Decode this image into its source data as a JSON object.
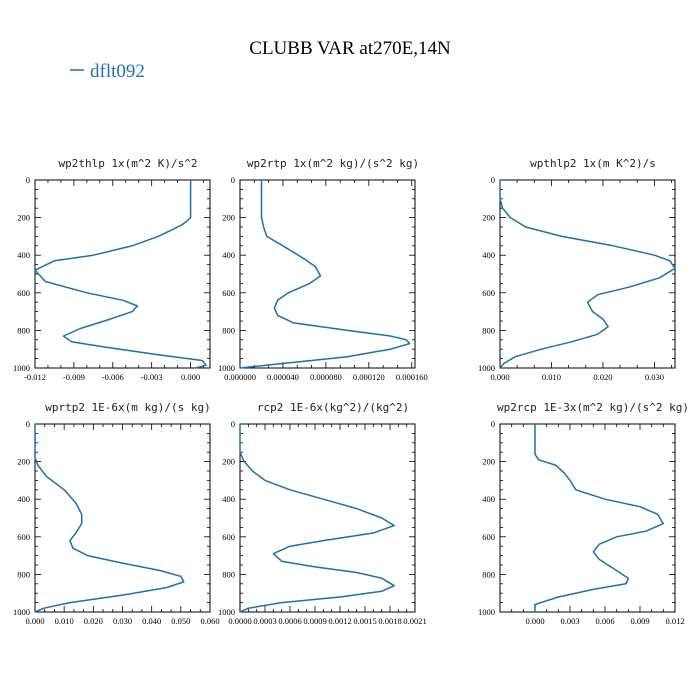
{
  "figure": {
    "title": "CLUBB VAR at270E,14N",
    "legend": [
      {
        "label": "dflt092",
        "color": "#1f6fae"
      }
    ]
  },
  "chart_data": [
    {
      "type": "line",
      "title": "wp2thlp  1x(m^2 K)/s^2",
      "x_range": [
        -0.012,
        0.0015
      ],
      "x_ticks": [
        -0.012,
        -0.009,
        -0.006,
        -0.003,
        0.0
      ],
      "x_tick_labels": [
        "-0.012",
        "-0.009",
        "-0.006",
        "-0.003",
        "0.000"
      ],
      "y_range": [
        0,
        1000
      ],
      "y_inverted": true,
      "y_ticks": [
        0,
        200,
        400,
        600,
        800,
        1000
      ],
      "y_tick_labels": [
        "0",
        "200",
        "400",
        "600",
        "800",
        "1000"
      ],
      "series": [
        {
          "color": "#1f6fae",
          "x": [
            0.0,
            0.0,
            -0.0003,
            -0.0007,
            -0.0013,
            -0.0025,
            -0.0045,
            -0.0075,
            -0.0105,
            -0.012,
            -0.0112,
            -0.008,
            -0.0052,
            -0.0041,
            -0.0045,
            -0.0062,
            -0.0085,
            -0.0098,
            -0.0092,
            -0.0065,
            -0.0025,
            0.0009,
            0.0012,
            0.0004
          ],
          "y": [
            0,
            200,
            220,
            240,
            260,
            300,
            350,
            400,
            430,
            480,
            540,
            600,
            640,
            670,
            700,
            740,
            790,
            830,
            860,
            890,
            930,
            960,
            985,
            1000
          ]
        }
      ]
    },
    {
      "type": "line",
      "title": "wp2rtp  1x(m^2 kg)/(s^2 kg)",
      "x_range": [
        0,
        0.000163
      ],
      "x_ticks": [
        0,
        4e-05,
        8e-05,
        0.00012,
        0.00016
      ],
      "x_tick_labels": [
        "0.000000",
        "0.000040",
        "0.000080",
        "0.000120",
        "0.000160"
      ],
      "y_range": [
        0,
        1000
      ],
      "y_inverted": true,
      "y_ticks": [
        0,
        200,
        400,
        600,
        800,
        1000
      ],
      "y_tick_labels": [
        "0",
        "200",
        "400",
        "600",
        "800",
        "1000"
      ],
      "series": [
        {
          "color": "#1f6fae",
          "x": [
            2e-05,
            2e-05,
            2.2e-05,
            2.5e-05,
            4e-05,
            6e-05,
            7e-05,
            7.5e-05,
            6.5e-05,
            4.5e-05,
            3.5e-05,
            3.2e-05,
            3.5e-05,
            5e-05,
            0.0001,
            0.00014,
            0.000155,
            0.000158,
            0.00014,
            0.0001,
            5e-05,
            0.0
          ],
          "y": [
            0,
            200,
            250,
            300,
            350,
            420,
            460,
            510,
            550,
            600,
            640,
            680,
            720,
            760,
            800,
            830,
            850,
            870,
            900,
            940,
            970,
            1000
          ]
        }
      ]
    },
    {
      "type": "line",
      "title": "wpthlp2  1x(m K^2)/s",
      "x_range": [
        0,
        0.034
      ],
      "x_ticks": [
        0.0,
        0.01,
        0.02,
        0.03
      ],
      "x_tick_labels": [
        "0.000",
        "0.010",
        "0.020",
        "0.030"
      ],
      "y_range": [
        0,
        1000
      ],
      "y_inverted": true,
      "y_ticks": [
        0,
        200,
        400,
        600,
        800,
        1000
      ],
      "y_tick_labels": [
        "0",
        "200",
        "400",
        "600",
        "800",
        "1000"
      ],
      "series": [
        {
          "color": "#1f6fae",
          "x": [
            0.0,
            0.0,
            0.0005,
            0.002,
            0.005,
            0.012,
            0.022,
            0.03,
            0.033,
            0.034,
            0.031,
            0.025,
            0.019,
            0.017,
            0.018,
            0.02,
            0.021,
            0.019,
            0.014,
            0.008,
            0.003,
            0.0008,
            0.0
          ],
          "y": [
            0,
            100,
            150,
            200,
            250,
            300,
            350,
            400,
            430,
            470,
            520,
            570,
            610,
            650,
            700,
            740,
            780,
            820,
            860,
            900,
            940,
            975,
            1000
          ]
        }
      ]
    },
    {
      "type": "line",
      "title": "wprtp2  1E-6x(m kg)/(s kg)",
      "x_range": [
        0,
        0.06
      ],
      "x_ticks": [
        0.0,
        0.01,
        0.02,
        0.03,
        0.04,
        0.05,
        0.06
      ],
      "x_tick_labels": [
        "0.000",
        "0.010",
        "0.020",
        "0.030",
        "0.040",
        "0.050",
        "0.060"
      ],
      "y_range": [
        0,
        1000
      ],
      "y_inverted": true,
      "y_ticks": [
        0,
        200,
        400,
        600,
        800,
        1000
      ],
      "y_tick_labels": [
        "0",
        "200",
        "400",
        "600",
        "800",
        "1000"
      ],
      "series": [
        {
          "color": "#1f6fae",
          "x": [
            0.0,
            0.0,
            0.001,
            0.004,
            0.01,
            0.014,
            0.016,
            0.016,
            0.014,
            0.012,
            0.013,
            0.018,
            0.03,
            0.043,
            0.05,
            0.051,
            0.045,
            0.03,
            0.012,
            0.003,
            0.0
          ],
          "y": [
            0,
            180,
            220,
            280,
            350,
            420,
            480,
            530,
            580,
            620,
            660,
            700,
            740,
            780,
            810,
            840,
            870,
            910,
            950,
            980,
            1000
          ]
        }
      ]
    },
    {
      "type": "line",
      "title": "rcp2  1E-6x(kg^2)/(kg^2)",
      "x_range": [
        0,
        0.0021
      ],
      "x_ticks": [
        0,
        0.0003,
        0.0006,
        0.0009,
        0.0012,
        0.0015,
        0.0018,
        0.0021
      ],
      "x_tick_labels": [
        "0.0000",
        "0.0003",
        "0.0006",
        "0.0009",
        "0.0012",
        "0.0015",
        "0.0018",
        "0.0021"
      ],
      "y_range": [
        0,
        1000
      ],
      "y_inverted": true,
      "y_ticks": [
        0,
        200,
        400,
        600,
        800,
        1000
      ],
      "y_tick_labels": [
        "0",
        "200",
        "400",
        "600",
        "800",
        "1000"
      ],
      "series": [
        {
          "color": "#1f6fae",
          "x": [
            0.0,
            0.0,
            5e-05,
            0.00015,
            0.0003,
            0.0006,
            0.001,
            0.0014,
            0.0017,
            0.00185,
            0.0016,
            0.001,
            0.0006,
            0.0004,
            0.0005,
            0.0009,
            0.0014,
            0.0017,
            0.00185,
            0.0017,
            0.0012,
            0.0005,
            0.0001,
            0.0
          ],
          "y": [
            0,
            150,
            200,
            250,
            300,
            350,
            400,
            450,
            500,
            540,
            580,
            620,
            650,
            690,
            730,
            760,
            790,
            820,
            860,
            890,
            920,
            950,
            980,
            1000
          ]
        }
      ]
    },
    {
      "type": "line",
      "title": "wp2rcp  1E-3x(m^2 kg)/(s^2 kg)",
      "x_range": [
        -0.003,
        0.012
      ],
      "x_ticks": [
        0.0,
        0.003,
        0.006,
        0.009,
        0.012
      ],
      "x_tick_labels": [
        "0.000",
        "0.003",
        "0.006",
        "0.009",
        "0.012"
      ],
      "y_range": [
        0,
        1000
      ],
      "y_inverted": true,
      "y_ticks": [
        0,
        200,
        400,
        600,
        800,
        1000
      ],
      "y_tick_labels": [
        "0",
        "200",
        "400",
        "600",
        "800",
        "1000"
      ],
      "series": [
        {
          "color": "#1f6fae",
          "x": [
            0.0,
            0.0,
            0.0003,
            0.0018,
            0.0025,
            0.003,
            0.0035,
            0.006,
            0.009,
            0.0105,
            0.011,
            0.0095,
            0.007,
            0.0055,
            0.005,
            0.0055,
            0.007,
            0.008,
            0.0078,
            0.005,
            0.002,
            0.0,
            0.0
          ],
          "y": [
            0,
            160,
            190,
            220,
            260,
            300,
            350,
            400,
            440,
            480,
            530,
            570,
            600,
            640,
            680,
            720,
            780,
            820,
            850,
            880,
            920,
            960,
            1000
          ]
        }
      ]
    }
  ]
}
